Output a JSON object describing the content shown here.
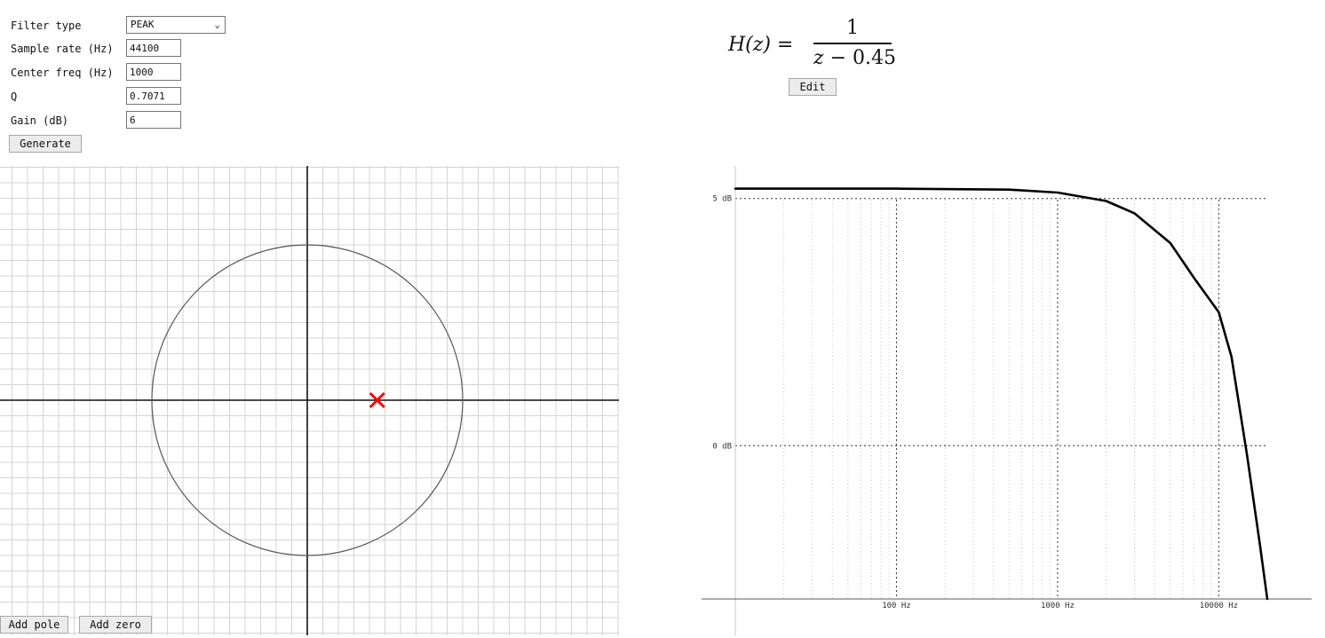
{
  "form": {
    "filter_type_label": "Filter type",
    "filter_type_value": "PEAK",
    "sample_rate_label": "Sample rate (Hz)",
    "sample_rate_value": "44100",
    "center_freq_label": "Center freq (Hz)",
    "center_freq_value": "1000",
    "q_label": "Q",
    "q_value": "0.7071",
    "gain_label": "Gain (dB)",
    "gain_value": "6",
    "generate_label": "Generate",
    "select_icon": "chevron-down-icon"
  },
  "pole_zero": {
    "poles": [
      {
        "re": 0.45,
        "im": 0
      }
    ],
    "zeros": [],
    "pole_color": "#ff0000",
    "grid": true,
    "add_pole_label": "Add pole",
    "add_zero_label": "Add zero"
  },
  "transfer_function": {
    "lhs": "H(z) =",
    "numerator": "1",
    "denominator_var": "z",
    "denominator_rest": " − 0.45",
    "edit_label": "Edit"
  },
  "chart_data": {
    "type": "line",
    "x_scale": "log",
    "xlim": [
      10,
      20000
    ],
    "ylim": [
      -3.1,
      5.3
    ],
    "x_ticks": [
      100,
      1000,
      10000
    ],
    "x_tick_labels": [
      "100 Hz",
      "1000 Hz",
      "10000 Hz"
    ],
    "y_ticks": [
      0,
      5
    ],
    "y_tick_labels": [
      "0 dB",
      "5 dB"
    ],
    "grid": true,
    "series": [
      {
        "x": [
          10,
          100,
          500,
          1000,
          2000,
          3000,
          5000,
          7000,
          10000,
          12000,
          15000,
          18000,
          20000
        ],
        "y": [
          5.2,
          5.2,
          5.18,
          5.12,
          4.95,
          4.7,
          4.1,
          3.4,
          2.7,
          1.8,
          -0.2,
          -2.0,
          -3.1
        ]
      }
    ]
  }
}
